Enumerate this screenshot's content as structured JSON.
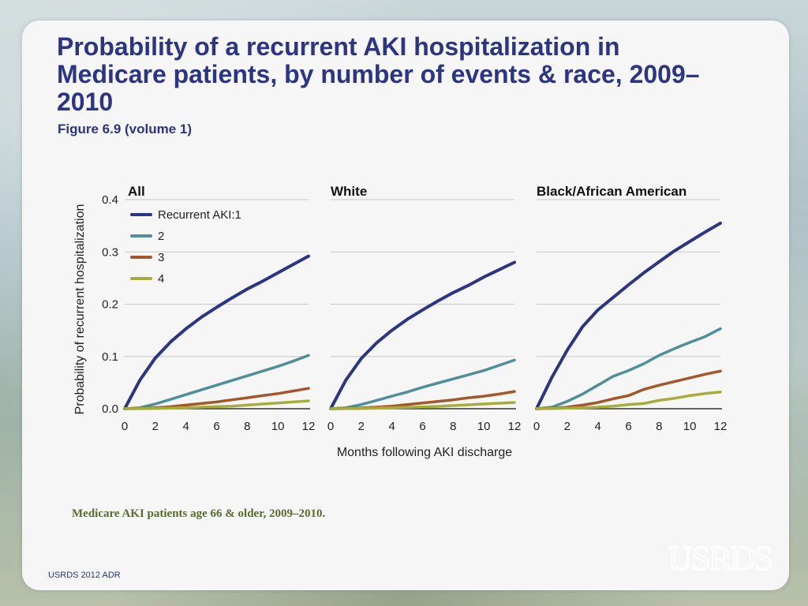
{
  "title": "Probability of a recurrent AKI hospitalization in Medicare patients, by number of events & race, 2009–2010",
  "subtitle": "Figure 6.9 (volume 1)",
  "note": "Medicare AKI patients age 66 & older, 2009–2010.",
  "footer": "USRDS 2012 ADR",
  "logo_text": "USRDS",
  "chart_data": {
    "type": "line",
    "ylabel": "Probability of recurrent hospitalization",
    "xlabel": "Months following AKI discharge",
    "ylim": [
      0,
      0.4
    ],
    "xlim": [
      0,
      12
    ],
    "yticks": [
      "0.0",
      "0.1",
      "0.2",
      "0.3",
      "0.4"
    ],
    "xticks": [
      "0",
      "2",
      "4",
      "6",
      "8",
      "10",
      "12"
    ],
    "grid": true,
    "legend": {
      "placement": "top-left",
      "entries": [
        "Recurrent AKI:1",
        "2",
        "3",
        "4"
      ]
    },
    "series_colors": [
      "#2b3585",
      "#4f8f9a",
      "#a2582a",
      "#a8ad3a"
    ],
    "x": [
      0,
      1,
      2,
      3,
      4,
      5,
      6,
      7,
      8,
      9,
      10,
      11,
      12
    ],
    "panels": [
      {
        "title": "All",
        "series": [
          {
            "name": "Recurrent AKI:1",
            "values": [
              0,
              0.055,
              0.097,
              0.128,
              0.153,
              0.175,
              0.194,
              0.212,
              0.229,
              0.244,
              0.26,
              0.276,
              0.292
            ]
          },
          {
            "name": "2",
            "values": [
              0,
              0.002,
              0.009,
              0.018,
              0.027,
              0.036,
              0.045,
              0.054,
              0.063,
              0.072,
              0.081,
              0.091,
              0.102
            ]
          },
          {
            "name": "3",
            "values": [
              0,
              0.0005,
              0.002,
              0.004,
              0.007,
              0.01,
              0.013,
              0.017,
              0.021,
              0.025,
              0.029,
              0.034,
              0.039
            ]
          },
          {
            "name": "4",
            "values": [
              0,
              0.0002,
              0.0006,
              0.0012,
              0.002,
              0.003,
              0.004,
              0.005,
              0.007,
              0.009,
              0.011,
              0.013,
              0.015
            ]
          }
        ]
      },
      {
        "title": "White",
        "series": [
          {
            "name": "Recurrent AKI:1",
            "values": [
              0,
              0.055,
              0.096,
              0.126,
              0.15,
              0.171,
              0.189,
              0.206,
              0.222,
              0.236,
              0.252,
              0.266,
              0.28
            ]
          },
          {
            "name": "2",
            "values": [
              0,
              0.002,
              0.008,
              0.016,
              0.024,
              0.032,
              0.041,
              0.049,
              0.057,
              0.065,
              0.073,
              0.083,
              0.093
            ]
          },
          {
            "name": "3",
            "values": [
              0,
              0.0004,
              0.0015,
              0.003,
              0.005,
              0.008,
              0.011,
              0.014,
              0.017,
              0.021,
              0.024,
              0.028,
              0.033
            ]
          },
          {
            "name": "4",
            "values": [
              0,
              0.0002,
              0.0005,
              0.001,
              0.0017,
              0.0025,
              0.0035,
              0.0045,
              0.006,
              0.0075,
              0.009,
              0.0105,
              0.012
            ]
          }
        ]
      },
      {
        "title": "Black/African American",
        "series": [
          {
            "name": "Recurrent AKI:1",
            "values": [
              0,
              0.06,
              0.112,
              0.157,
              0.189,
              0.213,
              0.237,
              0.26,
              0.281,
              0.302,
              0.32,
              0.338,
              0.355
            ]
          },
          {
            "name": "2",
            "values": [
              0,
              0.003,
              0.014,
              0.028,
              0.045,
              0.062,
              0.073,
              0.086,
              0.102,
              0.115,
              0.127,
              0.138,
              0.153
            ]
          },
          {
            "name": "3",
            "values": [
              0,
              0.0008,
              0.003,
              0.007,
              0.012,
              0.019,
              0.025,
              0.037,
              0.045,
              0.052,
              0.059,
              0.066,
              0.072
            ]
          },
          {
            "name": "4",
            "values": [
              0,
              0.0003,
              0.001,
              0.002,
              0.003,
              0.005,
              0.008,
              0.01,
              0.016,
              0.02,
              0.025,
              0.029,
              0.032
            ]
          }
        ]
      }
    ]
  }
}
